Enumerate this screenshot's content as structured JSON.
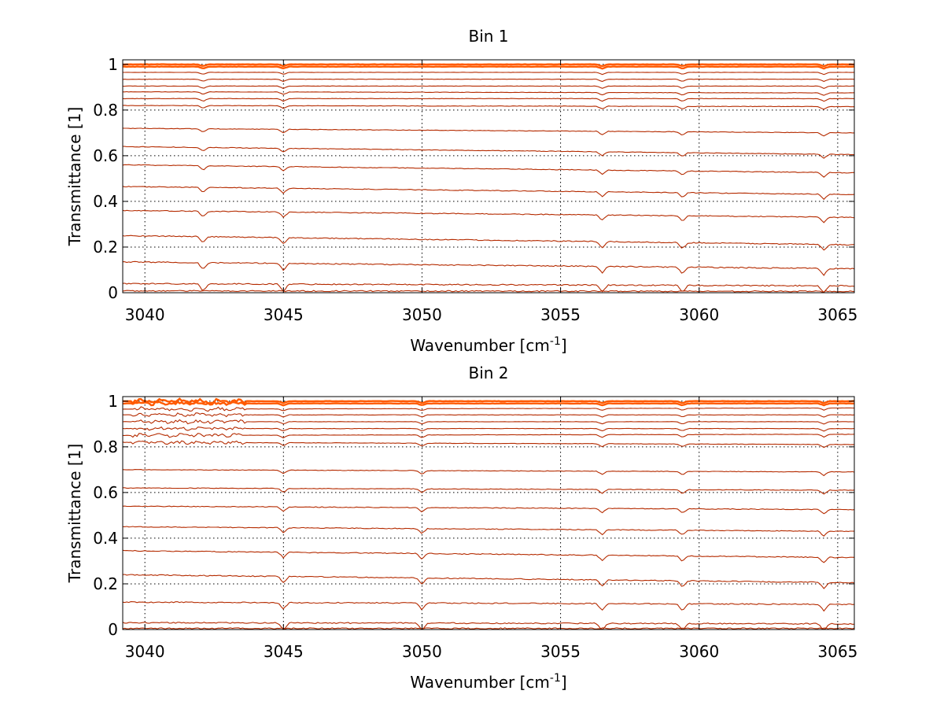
{
  "figure": {
    "background": "#ffffff",
    "line_color": "#b52b00",
    "top_color": "#ff5a00"
  },
  "chart_data": [
    {
      "type": "line",
      "title": "Bin 1",
      "xlabel": "Wavenumber [cm",
      "xlabel_sup": "-1",
      "xlabel_end": "]",
      "ylabel": "Transmittance [1]",
      "xlim": [
        3039.2,
        3065.6
      ],
      "ylim": [
        0,
        1.02
      ],
      "xticks": [
        3040,
        3045,
        3050,
        3055,
        3060,
        3065
      ],
      "xtick_labels": [
        "3040",
        "3045",
        "3050",
        "3055",
        "3060",
        "3065"
      ],
      "yticks": [
        0,
        0.2,
        0.4,
        0.6,
        0.8,
        1
      ],
      "ytick_labels": [
        "0",
        "0.2",
        "0.4",
        "0.6",
        "0.8",
        "1"
      ],
      "grid": true,
      "series_note": "family of transmittance spectra; each series has a start and end value, with small absorption dips",
      "series": [
        {
          "start": 1.0,
          "end": 1.0
        },
        {
          "start": 0.99,
          "end": 0.99
        },
        {
          "start": 0.965,
          "end": 0.965
        },
        {
          "start": 0.935,
          "end": 0.935
        },
        {
          "start": 0.905,
          "end": 0.905
        },
        {
          "start": 0.88,
          "end": 0.875
        },
        {
          "start": 0.85,
          "end": 0.85
        },
        {
          "start": 0.82,
          "end": 0.815
        },
        {
          "start": 0.72,
          "end": 0.7
        },
        {
          "start": 0.64,
          "end": 0.605
        },
        {
          "start": 0.56,
          "end": 0.525
        },
        {
          "start": 0.465,
          "end": 0.43
        },
        {
          "start": 0.36,
          "end": 0.33
        },
        {
          "start": 0.25,
          "end": 0.21
        },
        {
          "start": 0.135,
          "end": 0.105
        },
        {
          "start": 0.04,
          "end": 0.03
        },
        {
          "start": 0.008,
          "end": 0.006
        }
      ],
      "dips": [
        3042.1,
        3045.0,
        3056.5,
        3059.4,
        3064.5
      ]
    },
    {
      "type": "line",
      "title": "Bin 2",
      "xlabel": "Wavenumber [cm",
      "xlabel_sup": "-1",
      "xlabel_end": "]",
      "ylabel": "Transmittance [1]",
      "xlim": [
        3039.2,
        3065.6
      ],
      "ylim": [
        0,
        1.02
      ],
      "xticks": [
        3040,
        3045,
        3050,
        3055,
        3060,
        3065
      ],
      "xtick_labels": [
        "3040",
        "3045",
        "3050",
        "3055",
        "3060",
        "3065"
      ],
      "yticks": [
        0,
        0.2,
        0.4,
        0.6,
        0.8,
        1
      ],
      "ytick_labels": [
        "0",
        "0.2",
        "0.4",
        "0.6",
        "0.8",
        "1"
      ],
      "grid": true,
      "series_note": "family of transmittance spectra; noisy region between 3039.5 and 3043.5",
      "series": [
        {
          "start": 1.0,
          "end": 1.0
        },
        {
          "start": 0.99,
          "end": 0.99
        },
        {
          "start": 0.965,
          "end": 0.97
        },
        {
          "start": 0.94,
          "end": 0.94
        },
        {
          "start": 0.91,
          "end": 0.91
        },
        {
          "start": 0.88,
          "end": 0.88
        },
        {
          "start": 0.85,
          "end": 0.855
        },
        {
          "start": 0.82,
          "end": 0.81
        },
        {
          "start": 0.7,
          "end": 0.69
        },
        {
          "start": 0.62,
          "end": 0.61
        },
        {
          "start": 0.54,
          "end": 0.525
        },
        {
          "start": 0.45,
          "end": 0.43
        },
        {
          "start": 0.345,
          "end": 0.315
        },
        {
          "start": 0.24,
          "end": 0.205
        },
        {
          "start": 0.12,
          "end": 0.11
        },
        {
          "start": 0.03,
          "end": 0.025
        },
        {
          "start": 0.005,
          "end": 0.005
        }
      ],
      "dips": [
        3045.0,
        3050.0,
        3056.5,
        3059.4,
        3064.5
      ],
      "noisy_range": [
        3039.5,
        3043.6
      ]
    }
  ]
}
